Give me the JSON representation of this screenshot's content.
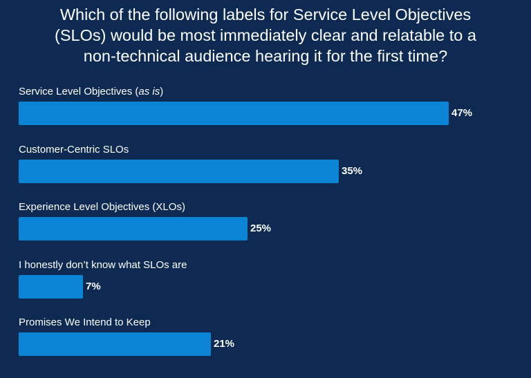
{
  "chart_data": {
    "type": "bar",
    "orientation": "horizontal",
    "title_lines": [
      "Which of the following labels for Service Level Objectives",
      "(SLOs) would be most immediately clear and relatable to a",
      "non-technical audience hearing it for the first time?"
    ],
    "categories": [
      "Service Level Objectives",
      "Customer-Centric SLOs",
      "Experience Level Objectives (XLOs)",
      "I honestly don’t know what SLOs are",
      "Promises We Intend to Keep"
    ],
    "category_suffix": [
      "(as is)",
      "",
      "",
      "",
      ""
    ],
    "values": [
      47,
      35,
      25,
      7,
      21
    ],
    "value_labels": [
      "47%",
      "35%",
      "25%",
      "7%",
      "21%"
    ],
    "unit": "%",
    "xlim": [
      0,
      47
    ],
    "grid": false,
    "legend": "none",
    "colors": {
      "background": "#0e2a52",
      "bar": "#0a84d4",
      "text": "#ffffff"
    }
  }
}
